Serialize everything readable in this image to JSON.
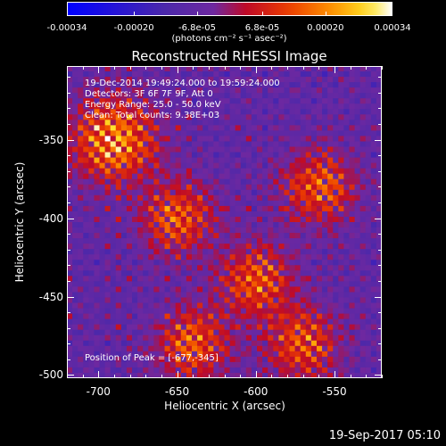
{
  "colorbar": {
    "ticks": [
      "-0.00034",
      "-0.00020",
      "-6.8e-05",
      "6.8e-05",
      "0.00020",
      "0.00034"
    ],
    "unit_label": "(photons cm⁻² s⁻¹ asec⁻²)",
    "range": [
      -0.00034,
      0.00034
    ]
  },
  "title": "Reconstructed RHESSI Image",
  "annotations": [
    "19-Dec-2014 19:49:24.000 to 19:59:24.000",
    "Detectors: 3F 6F 7F 9F, Att 0",
    "Energy Range: 25.0 - 50.0 keV",
    "Clean: Total counts: 9.38E+03"
  ],
  "peak_label": "Position of Peak = [-677,-345]",
  "chart_data": {
    "type": "heatmap",
    "title": "Reconstructed RHESSI Image",
    "xlabel": "Heliocentric X (arcsec)",
    "ylabel": "Heliocentric Y (arcsec)",
    "xlim": [
      -720,
      -520
    ],
    "ylim": [
      -502,
      -303
    ],
    "xticks": [
      "-700",
      "-650",
      "-600",
      "-550"
    ],
    "yticks": [
      "-350",
      "-400",
      "-450",
      "-500"
    ],
    "peak": [
      -677,
      -345
    ],
    "bright_regions": [
      [
        -690,
        -350
      ],
      [
        -650,
        -400
      ],
      [
        -600,
        -440
      ],
      [
        -640,
        -480
      ],
      [
        -560,
        -380
      ],
      [
        -570,
        -480
      ]
    ]
  },
  "footer": "19-Sep-2017 05:10"
}
